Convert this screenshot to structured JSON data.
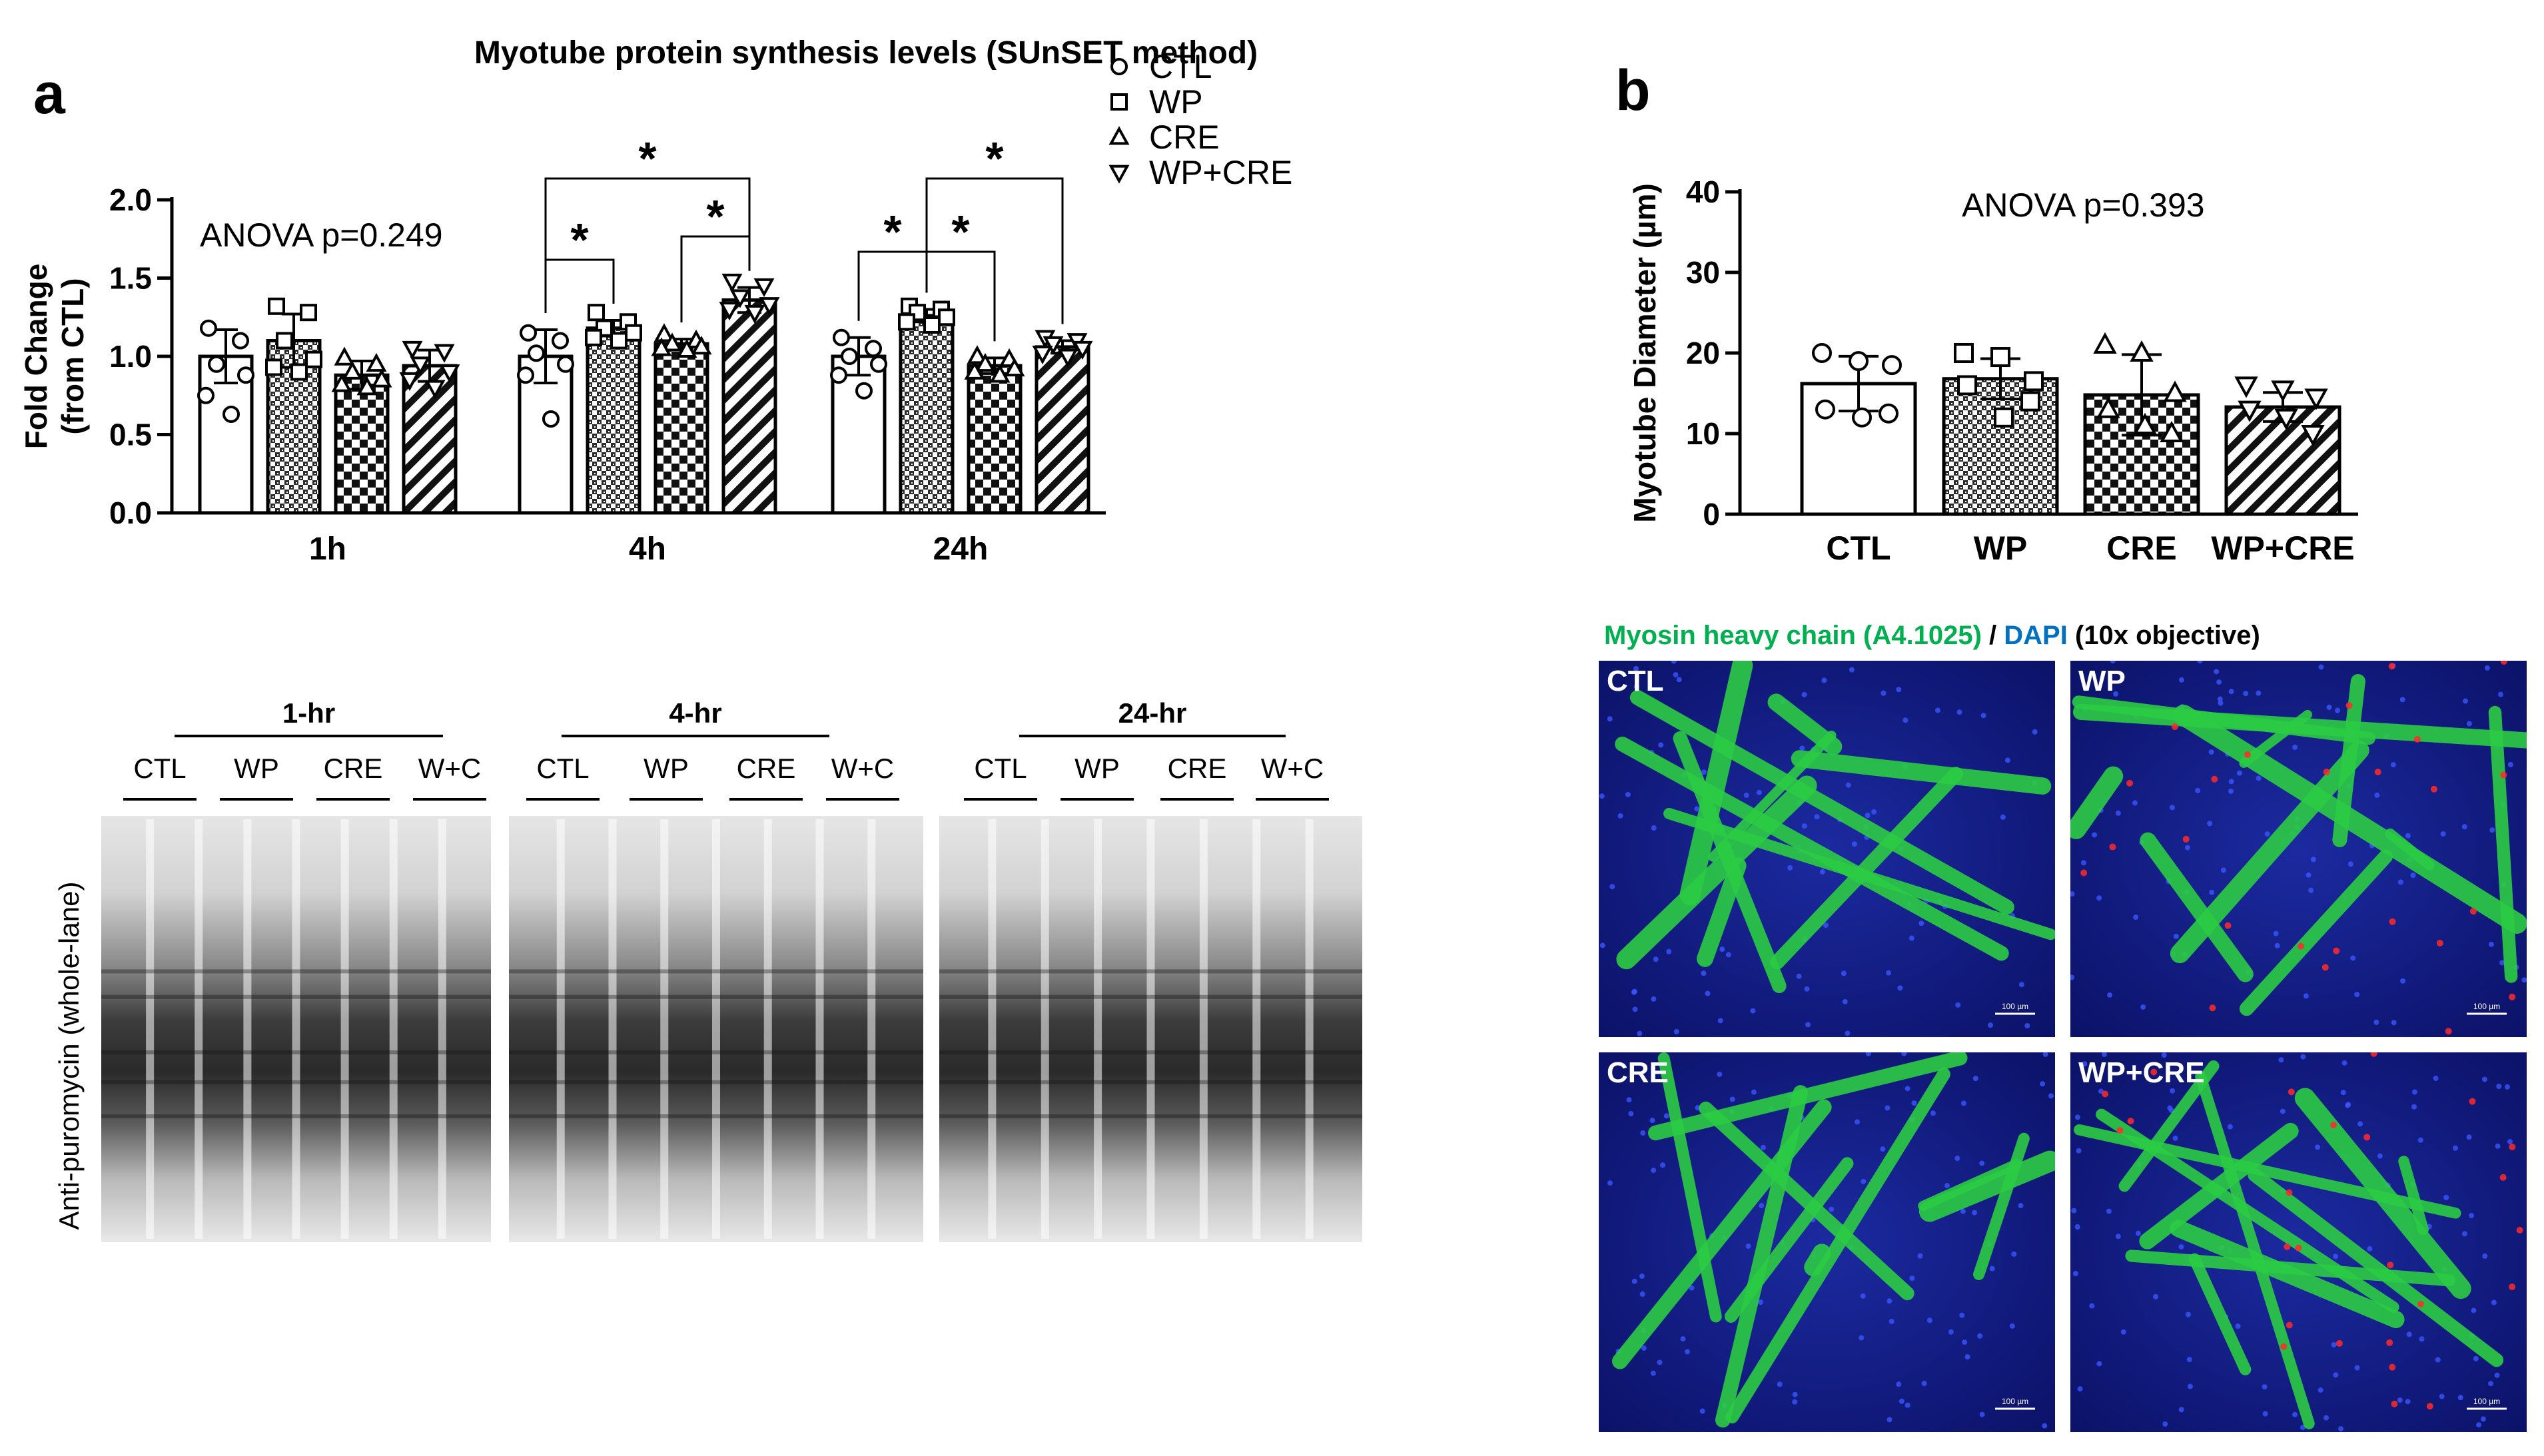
{
  "panel_a": {
    "letter": "a",
    "title": "Myotube protein synthesis levels (SUnSET method)",
    "legend": [
      {
        "name": "CTL",
        "marker": "circle",
        "pattern": "none"
      },
      {
        "name": "WP",
        "marker": "square",
        "pattern": "dots"
      },
      {
        "name": "CRE",
        "marker": "triangle-up",
        "pattern": "checker"
      },
      {
        "name": "WP+CRE",
        "marker": "triangle-down",
        "pattern": "hatch"
      }
    ],
    "annotation": "ANOVA p=0.249",
    "significance_symbol": "*"
  },
  "panel_b": {
    "letter": "b",
    "annotation": "ANOVA p=0.393",
    "mhc_label": "Myosin heavy chain (A4.1025)",
    "separator": " / ",
    "dapi_label": "DAPI",
    "objective_label": " (10x objective)",
    "scale_bar_label": "100 µm",
    "micrograph_labels": [
      "CTL",
      "WP",
      "CRE",
      "WP+CRE"
    ]
  },
  "blot": {
    "y_label": "Anti-puromycin (whole-lane)",
    "groups": [
      {
        "time": "1-hr",
        "lanes": [
          "CTL",
          "WP",
          "CRE",
          "W+C"
        ]
      },
      {
        "time": "4-hr",
        "lanes": [
          "CTL",
          "WP",
          "CRE",
          "W+C"
        ]
      },
      {
        "time": "24-hr",
        "lanes": [
          "CTL",
          "WP",
          "CRE",
          "W+C"
        ]
      }
    ]
  },
  "colors": {
    "mhc": "#00b050",
    "dapi": "#0070c0",
    "bar_fill": "#ffffff",
    "ink": "#000000"
  },
  "chart_data": [
    {
      "type": "bar",
      "ylabel": "Fold Change\n(from CTL)",
      "ylim": [
        0,
        2.0
      ],
      "yticks": [
        "0.0",
        "0.5",
        "1.0",
        "1.5",
        "2.0"
      ],
      "categories": [
        "1h",
        "4h",
        "24h"
      ],
      "series": [
        {
          "name": "CTL",
          "values": [
            1.0,
            1.0,
            1.0
          ],
          "sd": [
            0.17,
            0.17,
            0.12
          ]
        },
        {
          "name": "WP",
          "values": [
            1.1,
            1.18,
            1.26
          ],
          "sd": [
            0.17,
            0.05,
            0.04
          ]
        },
        {
          "name": "CRE",
          "values": [
            0.88,
            1.08,
            0.94
          ],
          "sd": [
            0.09,
            0.03,
            0.05
          ]
        },
        {
          "name": "WP+CRE",
          "values": [
            0.94,
            1.36,
            1.06
          ],
          "sd": [
            0.1,
            0.08,
            0.04
          ]
        }
      ],
      "points": [
        [
          [
            1.18,
            1.1,
            0.95,
            0.88,
            0.75,
            0.63
          ],
          [
            1.32,
            1.28,
            1.1,
            0.98,
            0.93,
            0.9
          ],
          [
            0.99,
            0.95,
            0.9,
            0.85,
            0.82,
            0.8
          ],
          [
            1.05,
            1.03,
            0.95,
            0.9,
            0.85,
            0.8
          ]
        ],
        [
          [
            1.15,
            1.1,
            1.02,
            0.95,
            0.88,
            0.6
          ],
          [
            1.28,
            1.22,
            1.18,
            1.15,
            1.12,
            1.1
          ],
          [
            1.14,
            1.1,
            1.08,
            1.06,
            1.05,
            1.04
          ],
          [
            1.48,
            1.45,
            1.38,
            1.33,
            1.3,
            1.28
          ]
        ],
        [
          [
            1.12,
            1.05,
            1.0,
            0.95,
            0.88,
            0.78
          ],
          [
            1.32,
            1.3,
            1.28,
            1.25,
            1.22,
            1.2
          ],
          [
            1.0,
            0.98,
            0.95,
            0.92,
            0.9,
            0.88
          ],
          [
            1.12,
            1.1,
            1.08,
            1.05,
            1.02,
            1.0
          ]
        ]
      ],
      "significance": [
        {
          "category": 1,
          "from": 0,
          "to": 1
        },
        {
          "category": 1,
          "from": 2,
          "to": 3
        },
        {
          "category": 1,
          "from": 0,
          "to": 3
        },
        {
          "category": 2,
          "from": 0,
          "to": 1
        },
        {
          "category": 2,
          "from": 1,
          "to": 2
        },
        {
          "category": 2,
          "from": 1,
          "to": 3
        }
      ]
    },
    {
      "type": "bar",
      "ylabel": "Myotube Diameter (µm)",
      "ylim": [
        0,
        40
      ],
      "yticks": [
        "0",
        "10",
        "20",
        "30",
        "40"
      ],
      "categories": [
        "CTL",
        "WP",
        "CRE",
        "WP+CRE"
      ],
      "values": [
        16.2,
        16.8,
        14.8,
        13.3
      ],
      "sd": [
        3.4,
        2.5,
        5.0,
        1.8
      ],
      "points": [
        [
          20,
          19,
          18.5,
          13,
          12,
          12.5
        ],
        [
          20,
          19.5,
          16.5,
          16,
          12,
          14
        ],
        [
          21,
          20,
          15,
          13,
          11,
          10
        ],
        [
          16,
          15.5,
          14.5,
          13,
          12,
          10
        ]
      ]
    }
  ]
}
